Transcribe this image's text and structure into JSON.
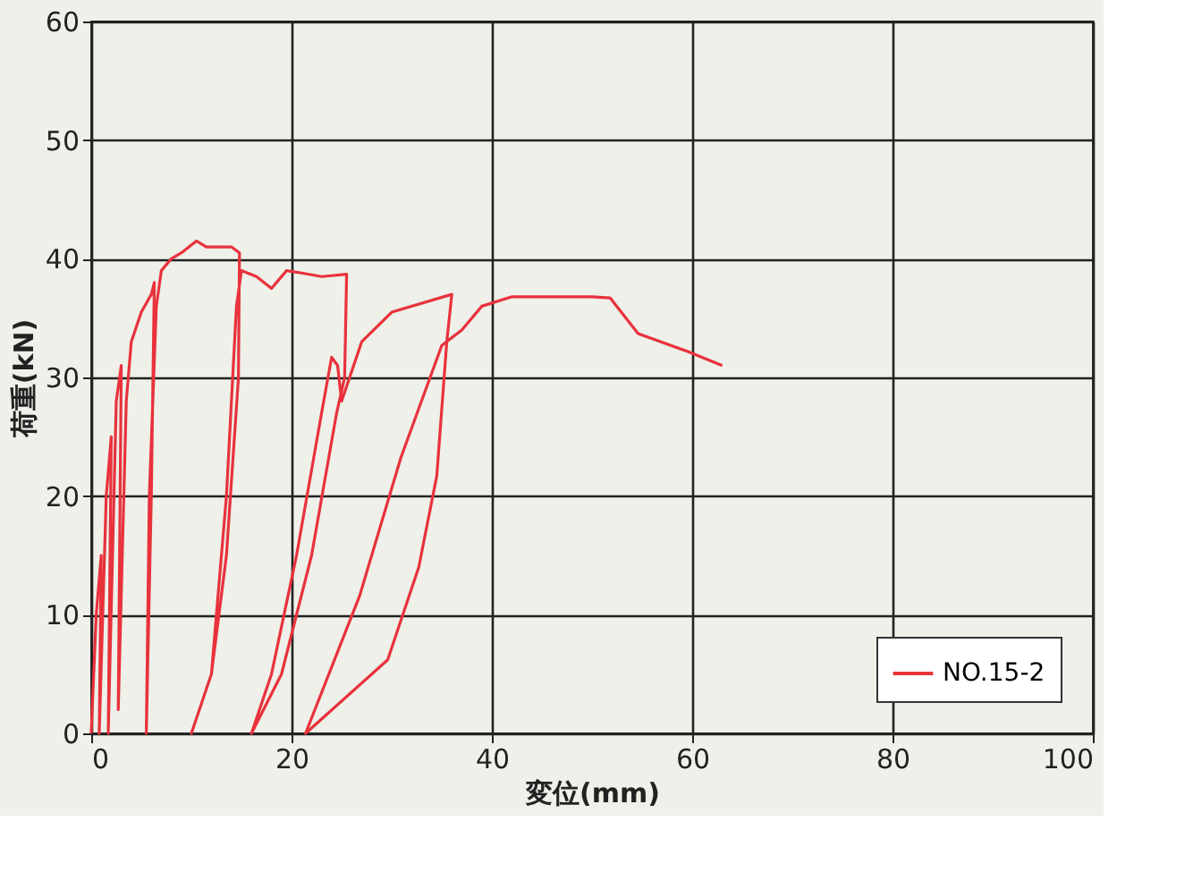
{
  "chart_data": {
    "type": "line",
    "xlabel": "変位(mm)",
    "ylabel": "荷重(kN)",
    "xlim": [
      0,
      100
    ],
    "xticks": [
      0,
      20,
      40,
      60,
      80,
      100
    ],
    "ylim": [
      0,
      60
    ],
    "yticks": [
      0,
      10,
      20,
      30,
      40,
      50,
      60
    ],
    "grid": true,
    "legend": "bottom right",
    "marker": "none",
    "line_style": "solid",
    "series": [
      {
        "name": "NO.15-2",
        "color": "#e8323c",
        "x": [
          0,
          0.5,
          1,
          0.8,
          1.5,
          2,
          1.7,
          2.5,
          3,
          2.7,
          3.5,
          4,
          5,
          6,
          6.3,
          6,
          5.5,
          5.8,
          6.5,
          7,
          8,
          9,
          10.5,
          11.5,
          12.5,
          14,
          14.8,
          14.7,
          13.5,
          12,
          10,
          12,
          13.5,
          14.5,
          15,
          16.5,
          18,
          19.5,
          21,
          23,
          25.5,
          25.3,
          24.5,
          22,
          19,
          16,
          18,
          20.5,
          23,
          24,
          24.6,
          25,
          27,
          30,
          36,
          35.5,
          34.5,
          32.7,
          29.6,
          21.4,
          26.8,
          30.9,
          35,
          37,
          39,
          42,
          50,
          51.8,
          54.6,
          59.5,
          63
        ],
        "values": [
          0,
          10,
          15,
          0,
          20,
          25,
          0,
          28,
          31,
          2,
          28,
          33,
          35.5,
          37,
          38,
          20,
          0,
          20,
          36,
          39,
          40,
          40.5,
          41.5,
          41,
          41,
          41,
          40.5,
          30,
          15,
          5,
          0,
          5,
          20,
          36,
          39,
          38.5,
          37.5,
          39,
          38.8,
          38.5,
          38.7,
          30,
          27,
          15,
          5,
          0,
          5,
          15,
          27,
          31.7,
          31,
          28,
          33,
          35.5,
          37,
          33,
          21.7,
          14,
          6.2,
          0,
          11.6,
          23.2,
          32.7,
          34,
          36,
          36.8,
          36.8,
          36.7,
          33.7,
          32.2,
          31
        ]
      }
    ]
  }
}
